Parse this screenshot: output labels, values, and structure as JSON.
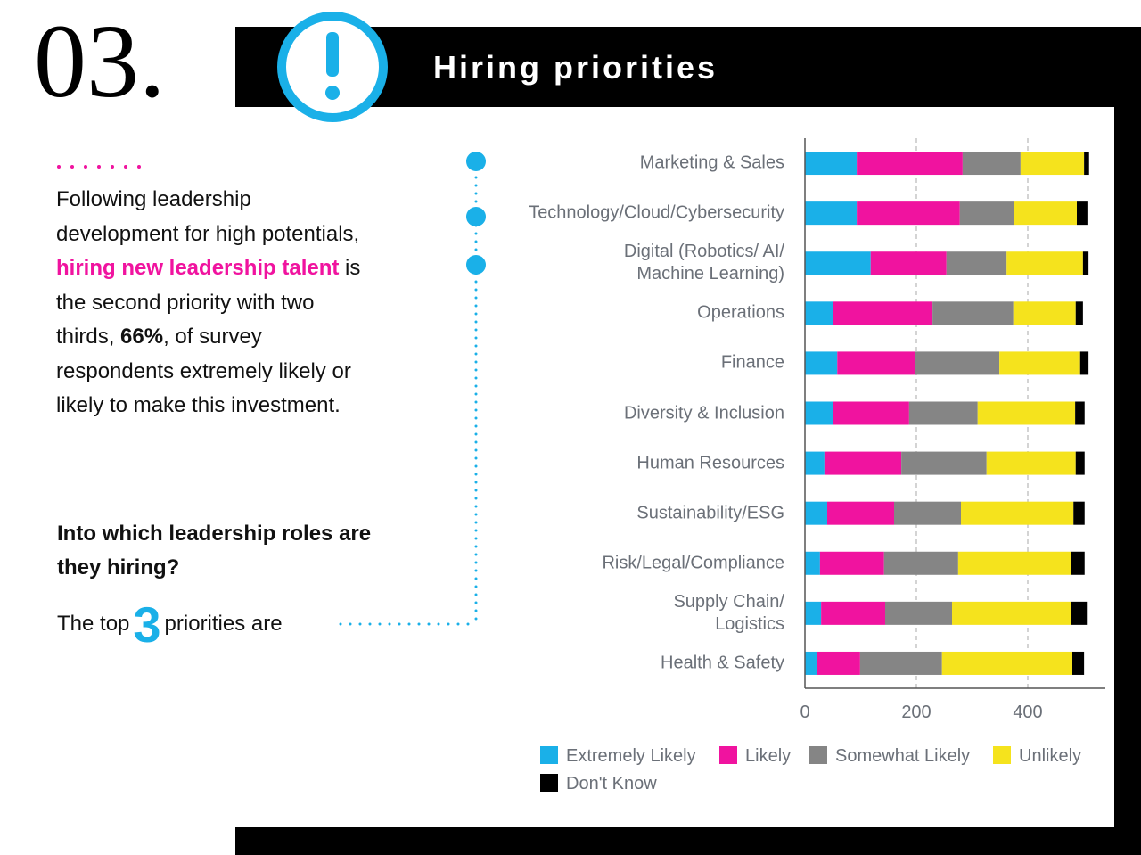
{
  "header": {
    "number": "03.",
    "title": "Hiring priorities"
  },
  "body": {
    "intro": "Following leadership development for high potentials, ",
    "highlight": "hiring new leadership talent",
    "middle": " is the second priority with two thirds, ",
    "bold": "66%",
    "end": ", of survey respondents extremely likely or likely to make this investment.",
    "question": "Into which leadership roles are they hiring?",
    "top_prefix": "The top",
    "top_number": "3",
    "top_suffix": "priorities are"
  },
  "chart_data": {
    "type": "stacked_barh",
    "categories": [
      "Marketing & Sales",
      "Technology/Cloud/Cybersecurity",
      "Digital (Robotics/ AI/\nMachine Learning)",
      "Operations",
      "Finance",
      "Diversity & Inclusion",
      "Human Resources",
      "Sustainability/ESG",
      "Risk/Legal/Compliance",
      "Supply Chain/\nLogistics",
      "Health & Safety"
    ],
    "series": [
      {
        "name": "Extremely Likely",
        "color": "#1ab0e8",
        "values": [
          93,
          93,
          118,
          50,
          58,
          50,
          35,
          40,
          27,
          29,
          22
        ]
      },
      {
        "name": "Likely",
        "color": "#f0139f",
        "values": [
          190,
          185,
          136,
          179,
          140,
          137,
          138,
          120,
          115,
          115,
          77
        ]
      },
      {
        "name": "Somewhat Likely",
        "color": "#858585",
        "values": [
          104,
          98,
          108,
          145,
          151,
          123,
          153,
          120,
          133,
          120,
          147
        ]
      },
      {
        "name": "Unlikely",
        "color": "#f5e31d",
        "values": [
          114,
          112,
          137,
          112,
          145,
          175,
          160,
          202,
          202,
          213,
          234
        ]
      },
      {
        "name": "Don't Know",
        "color": "#000000",
        "values": [
          9,
          19,
          10,
          13,
          15,
          17,
          16,
          20,
          25,
          29,
          21
        ]
      }
    ],
    "xlim": [
      0,
      540
    ],
    "xticks": [
      0,
      200,
      400
    ],
    "grid": true
  }
}
